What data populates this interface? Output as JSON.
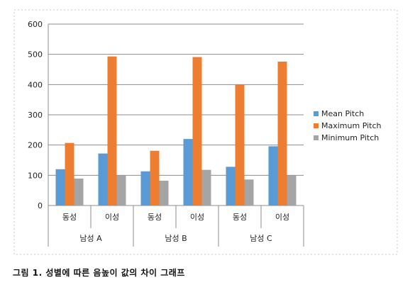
{
  "caption": "그림 1. 성별에 따른 음높이 값의 차이 그래프",
  "chart_data": {
    "type": "bar",
    "title": "",
    "xlabel": "",
    "ylabel": "",
    "ylim": [
      0,
      600
    ],
    "yticks": [
      0,
      100,
      200,
      300,
      400,
      500,
      600
    ],
    "grid": true,
    "legend_position": "right",
    "groups": [
      {
        "name": "남성 A",
        "categories": [
          "동성",
          "이성"
        ]
      },
      {
        "name": "남성 B",
        "categories": [
          "동성",
          "이성"
        ]
      },
      {
        "name": "남성 C",
        "categories": [
          "동성",
          "이성"
        ]
      }
    ],
    "categories": [
      "동성",
      "이성",
      "동성",
      "이성",
      "동성",
      "이성"
    ],
    "series": [
      {
        "name": "Mean Pitch",
        "color": "#5B9BD5",
        "values": [
          120,
          172,
          113,
          220,
          128,
          196
        ]
      },
      {
        "name": "Maximum Pitch",
        "color": "#ED7D31",
        "values": [
          207,
          493,
          181,
          491,
          400,
          476
        ]
      },
      {
        "name": "Minimum Pitch",
        "color": "#A5A5A5",
        "values": [
          89,
          100,
          82,
          118,
          86,
          100
        ]
      }
    ]
  }
}
